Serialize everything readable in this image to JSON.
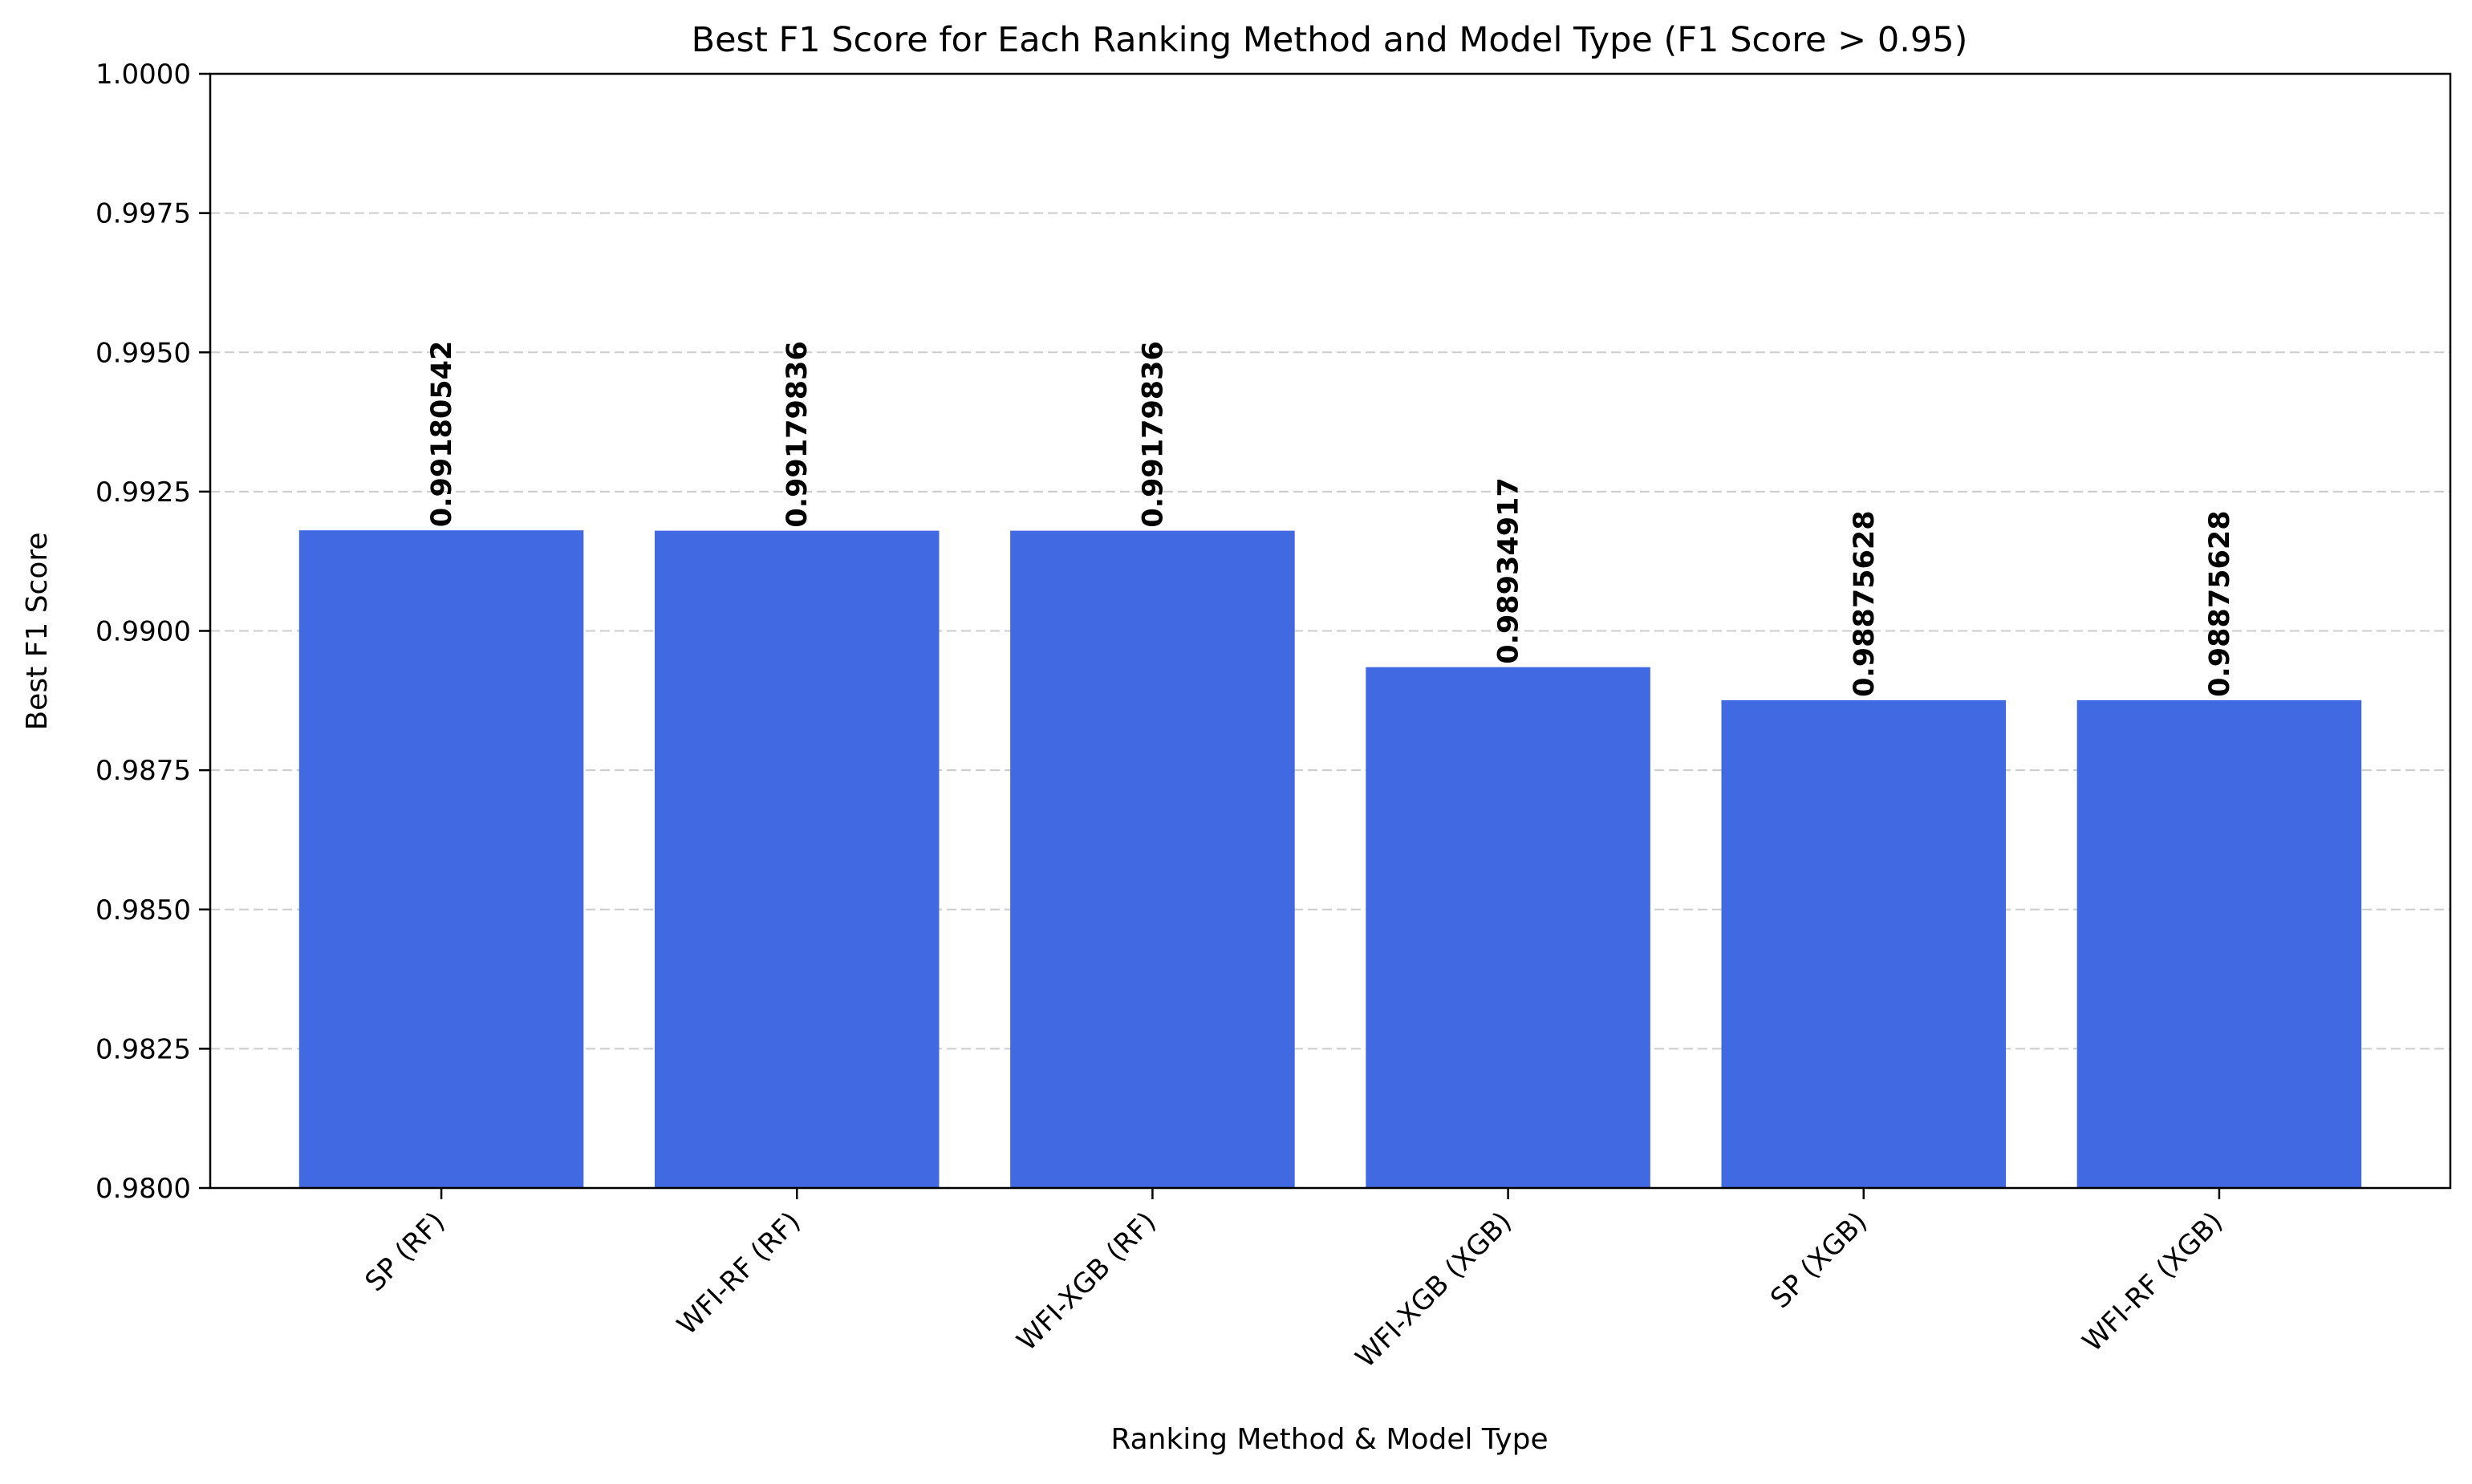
{
  "chart_data": {
    "type": "bar",
    "title": "Best F1 Score for Each Ranking Method and Model Type (F1 Score > 0.95)",
    "xlabel": "Ranking Method & Model Type",
    "ylabel": "Best F1 Score",
    "categories": [
      "SP (RF)",
      "WFI-RF (RF)",
      "WFI-XGB (RF)",
      "WFI-XGB (XGB)",
      "SP (XGB)",
      "WFI-RF (XGB)"
    ],
    "values": [
      0.99180542,
      0.99179836,
      0.99179836,
      0.98934917,
      0.98875628,
      0.98875628
    ],
    "value_labels": [
      "0.99180542",
      "0.99179836",
      "0.99179836",
      "0.98934917",
      "0.98875628",
      "0.98875628"
    ],
    "ylim": [
      0.98,
      1.0
    ],
    "yticks": [
      0.98,
      0.9825,
      0.985,
      0.9875,
      0.99,
      0.9925,
      0.995,
      0.9975,
      1.0
    ],
    "ytick_labels": [
      "0.9800",
      "0.9825",
      "0.9850",
      "0.9875",
      "0.9900",
      "0.9925",
      "0.9950",
      "0.9975",
      "1.0000"
    ],
    "grid": "y-dashed",
    "bar_color": "#4169e1",
    "grid_color": "#cccccc",
    "axis_color": "#000000"
  }
}
